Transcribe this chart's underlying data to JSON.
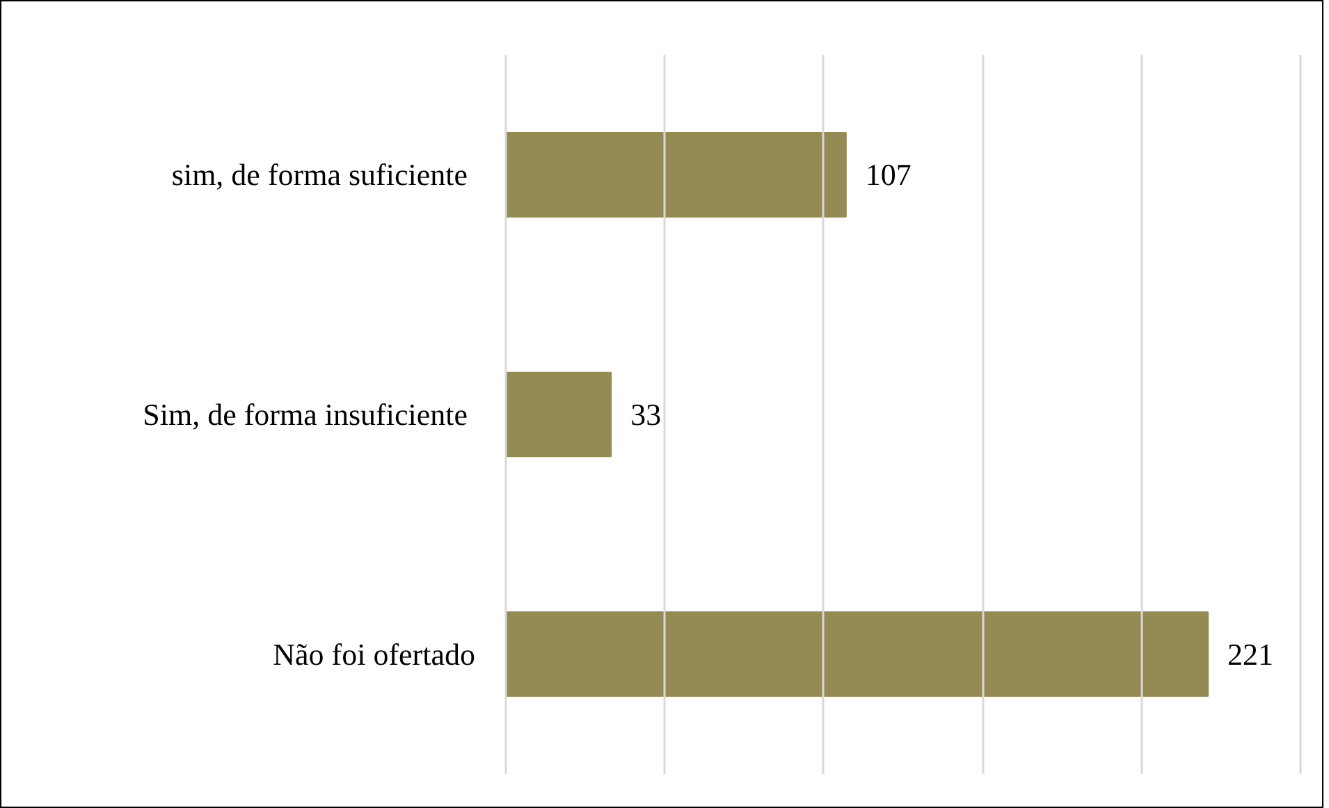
{
  "chart_data": {
    "type": "bar",
    "orientation": "horizontal",
    "categories": [
      "sim,  de forma suficiente",
      "Sim,  de forma insuficiente",
      "Não foi ofertado"
    ],
    "values": [
      107,
      33,
      221
    ],
    "color": "#948a54",
    "data_labels": true,
    "xticks": [
      0,
      50,
      100,
      150,
      200,
      250
    ],
    "grid": "x",
    "tick_labels": "y"
  }
}
